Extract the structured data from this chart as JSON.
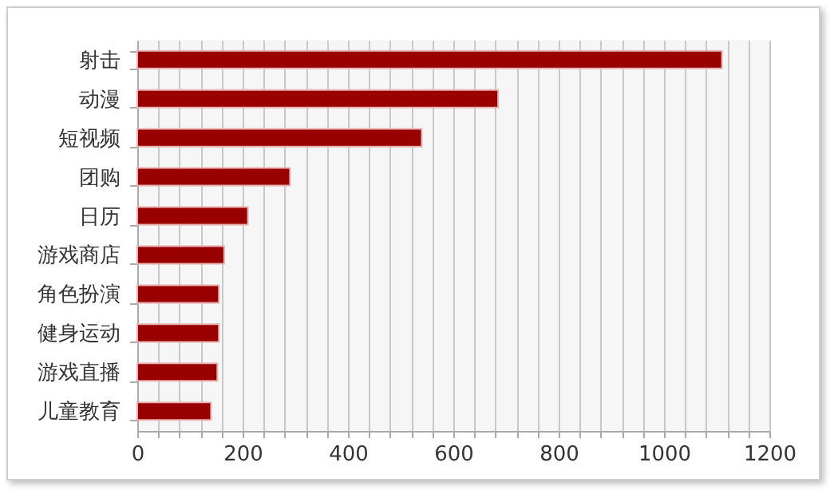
{
  "chart_data": {
    "type": "bar",
    "orientation": "horizontal",
    "categories": [
      "射击",
      "动漫",
      "短视频",
      "团购",
      "日历",
      "游戏商店",
      "角色扮演",
      "健身运动",
      "游戏直播",
      "儿童教育"
    ],
    "values": [
      1110,
      685,
      540,
      290,
      210,
      165,
      155,
      155,
      152,
      140
    ],
    "color": "#990000",
    "xlim": [
      0,
      1200
    ],
    "xticks": [
      0,
      {
        "value": 40,
        "label": null
      },
      {
        "value": 80,
        "label": null
      },
      {
        "value": 120,
        "label": null
      },
      {
        "value": 160,
        "label": null
      },
      200,
      {
        "value": 240,
        "label": null
      },
      {
        "value": 280,
        "label": null
      },
      {
        "value": 320,
        "label": null
      },
      {
        "value": 360,
        "label": null
      },
      400,
      {
        "value": 440,
        "label": null
      },
      {
        "value": 480,
        "label": null
      },
      {
        "value": 520,
        "label": null
      },
      {
        "value": 560,
        "label": null
      },
      600,
      {
        "value": 640,
        "label": null
      },
      {
        "value": 680,
        "label": null
      },
      {
        "value": 720,
        "label": null
      },
      {
        "value": 760,
        "label": null
      },
      800,
      {
        "value": 840,
        "label": null
      },
      {
        "value": 880,
        "label": null
      },
      {
        "value": 920,
        "label": null
      },
      {
        "value": 960,
        "label": null
      },
      1000,
      {
        "value": 1040,
        "label": null
      },
      {
        "value": 1080,
        "label": null
      },
      {
        "value": 1120,
        "label": null
      },
      {
        "value": 1160,
        "label": null
      },
      1200
    ],
    "grid": "x"
  }
}
